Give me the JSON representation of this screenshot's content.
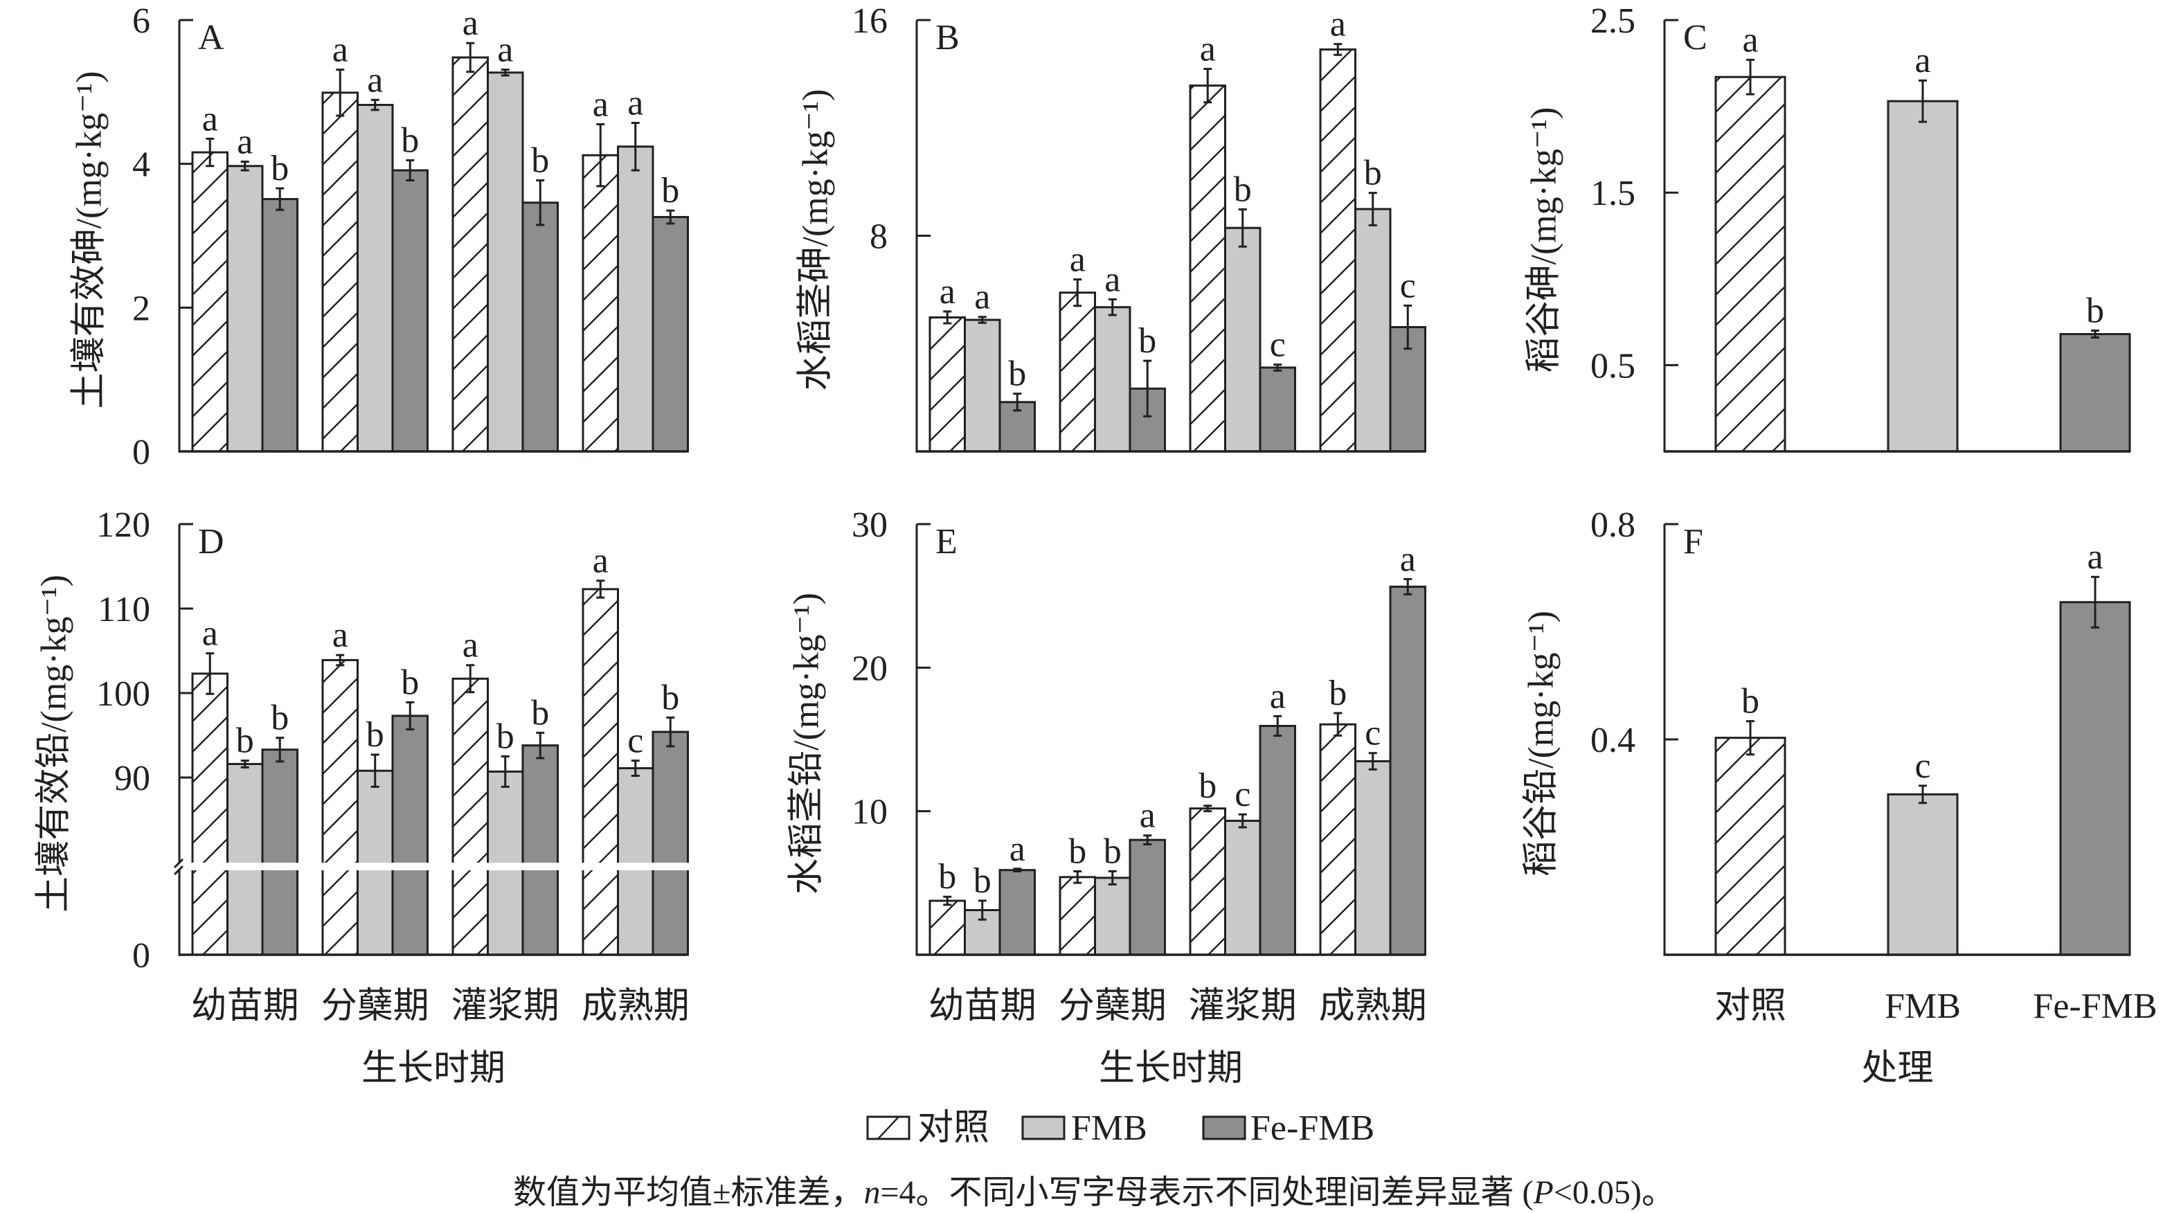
{
  "colors": {
    "ink": "#231f20",
    "background": "#ffffff",
    "control_fill": "#ffffff",
    "fmb_fill": "#c9c9c9",
    "fe_fmb_fill": "#8e8e8e"
  },
  "legend": [
    {
      "label": "对照",
      "swatch": "hatched"
    },
    {
      "label": "FMB",
      "swatch": "light-gray"
    },
    {
      "label": "Fe-FMB",
      "swatch": "dark-gray"
    }
  ],
  "caption": {
    "part1": "数值为平均值±标准差，",
    "n_symbol": "n",
    "part2": "=4。不同小写字母表示不同处理间差异显著 (",
    "p_symbol": "P",
    "part3": "<0.05)。"
  },
  "chart_data": [
    {
      "panel_label": "A",
      "type": "bar",
      "title": "",
      "ylabel": "土壤有效砷/(mg·kg⁻¹)",
      "xlabel": "",
      "categories": [
        "幼苗期",
        "分蘖期",
        "灌浆期",
        "成熟期"
      ],
      "show_category_labels": false,
      "ylim": [
        0,
        6
      ],
      "yticks": [
        0,
        2,
        4,
        6
      ],
      "axis_break": false,
      "grid": false,
      "series": [
        {
          "name": "对照",
          "values": [
            4.16,
            4.99,
            5.48,
            4.12
          ],
          "errors": [
            0.19,
            0.32,
            0.2,
            0.43
          ],
          "letters": [
            "a",
            "a",
            "a",
            "a"
          ]
        },
        {
          "name": "FMB",
          "values": [
            3.97,
            4.82,
            5.27,
            4.24
          ],
          "errors": [
            0.06,
            0.07,
            0.04,
            0.33
          ],
          "letters": [
            "a",
            "a",
            "a",
            "a"
          ]
        },
        {
          "name": "Fe-FMB",
          "values": [
            3.51,
            3.91,
            3.46,
            3.26
          ],
          "errors": [
            0.15,
            0.14,
            0.31,
            0.09
          ],
          "letters": [
            "b",
            "b",
            "b",
            "b"
          ]
        }
      ]
    },
    {
      "panel_label": "B",
      "type": "bar",
      "title": "",
      "ylabel": "水稻茎砷/(mg·kg⁻¹)",
      "xlabel": "",
      "categories": [
        "幼苗期",
        "分蘖期",
        "灌浆期",
        "成熟期"
      ],
      "show_category_labels": false,
      "ylim": [
        0,
        16
      ],
      "yticks": [
        8,
        16
      ],
      "axis_break": false,
      "grid": false,
      "series": [
        {
          "name": "对照",
          "values": [
            4.97,
            5.89,
            13.57,
            14.91
          ],
          "errors": [
            0.22,
            0.49,
            0.62,
            0.2
          ],
          "letters": [
            "a",
            "a",
            "a",
            "a"
          ]
        },
        {
          "name": "FMB",
          "values": [
            4.88,
            5.35,
            8.29,
            8.99
          ],
          "errors": [
            0.11,
            0.29,
            0.69,
            0.6
          ],
          "letters": [
            "a",
            "a",
            "b",
            "b"
          ]
        },
        {
          "name": "Fe-FMB",
          "values": [
            1.83,
            2.33,
            3.11,
            4.61
          ],
          "errors": [
            0.31,
            1.03,
            0.11,
            0.8
          ],
          "letters": [
            "b",
            "b",
            "c",
            "c"
          ]
        }
      ]
    },
    {
      "panel_label": "C",
      "type": "bar",
      "title": "",
      "ylabel": "稻谷砷/(mg·kg⁻¹)",
      "xlabel": "",
      "categories": [
        "对照",
        "FMB",
        "Fe-FMB"
      ],
      "show_category_labels": false,
      "ylim": [
        0,
        2.5
      ],
      "yticks": [
        0.5,
        1.5,
        2.5
      ],
      "axis_break": false,
      "grid": false,
      "series": [
        {
          "name": "稻谷砷",
          "values": [
            2.17,
            2.03,
            0.68
          ],
          "errors": [
            0.1,
            0.12,
            0.02
          ],
          "letters": [
            "a",
            "a",
            "b"
          ]
        }
      ]
    },
    {
      "panel_label": "D",
      "type": "bar",
      "title": "",
      "ylabel": "土壤有效铅/(mg·kg⁻¹)",
      "xlabel": "生长时期",
      "categories": [
        "幼苗期",
        "分蘖期",
        "灌浆期",
        "成熟期"
      ],
      "show_category_labels": true,
      "ylim": [
        0,
        120
      ],
      "yticks": [
        0,
        90,
        100,
        110,
        120
      ],
      "axis_break": true,
      "grid": false,
      "series": [
        {
          "name": "对照",
          "values": [
            102.3,
            103.9,
            101.7,
            112.3
          ],
          "errors": [
            2.4,
            0.6,
            1.6,
            1.0
          ],
          "letters": [
            "a",
            "a",
            "a",
            "a"
          ]
        },
        {
          "name": "FMB",
          "values": [
            91.6,
            90.8,
            90.7,
            91.1
          ],
          "errors": [
            0.4,
            1.9,
            1.8,
            0.9
          ],
          "letters": [
            "b",
            "b",
            "b",
            "c"
          ]
        },
        {
          "name": "Fe-FMB",
          "values": [
            93.3,
            97.3,
            93.8,
            95.4
          ],
          "errors": [
            1.4,
            1.6,
            1.5,
            1.7
          ],
          "letters": [
            "b",
            "b",
            "b",
            "b"
          ]
        }
      ]
    },
    {
      "panel_label": "E",
      "type": "bar",
      "title": "",
      "ylabel": "水稻茎铅/(mg·kg⁻¹)",
      "xlabel": "生长时期",
      "categories": [
        "幼苗期",
        "分蘖期",
        "灌浆期",
        "成熟期"
      ],
      "show_category_labels": true,
      "ylim": [
        0,
        30
      ],
      "yticks": [
        10,
        20,
        30
      ],
      "axis_break": false,
      "grid": false,
      "series": [
        {
          "name": "对照",
          "values": [
            3.76,
            5.41,
            10.19,
            16.05
          ],
          "errors": [
            0.28,
            0.4,
            0.19,
            0.78
          ],
          "letters": [
            "b",
            "b",
            "b",
            "b"
          ]
        },
        {
          "name": "FMB",
          "values": [
            3.11,
            5.36,
            9.33,
            13.48
          ],
          "errors": [
            0.66,
            0.46,
            0.45,
            0.57
          ],
          "letters": [
            "b",
            "b",
            "c",
            "c"
          ]
        },
        {
          "name": "Fe-FMB",
          "values": [
            5.9,
            8.0,
            15.94,
            25.64
          ],
          "errors": [
            0.09,
            0.31,
            0.68,
            0.53
          ],
          "letters": [
            "a",
            "a",
            "a",
            "a"
          ]
        }
      ]
    },
    {
      "panel_label": "F",
      "type": "bar",
      "title": "",
      "ylabel": "稻谷铅/(mg·kg⁻¹)",
      "xlabel": "处理",
      "categories": [
        "对照",
        "FMB",
        "Fe-FMB"
      ],
      "show_category_labels": true,
      "ylim": [
        0,
        0.8
      ],
      "yticks": [
        0.4,
        0.8
      ],
      "axis_break": false,
      "grid": false,
      "series": [
        {
          "name": "稻谷铅",
          "values": [
            0.403,
            0.298,
            0.655
          ],
          "errors": [
            0.031,
            0.016,
            0.047
          ],
          "letters": [
            "b",
            "c",
            "a"
          ]
        }
      ]
    }
  ]
}
